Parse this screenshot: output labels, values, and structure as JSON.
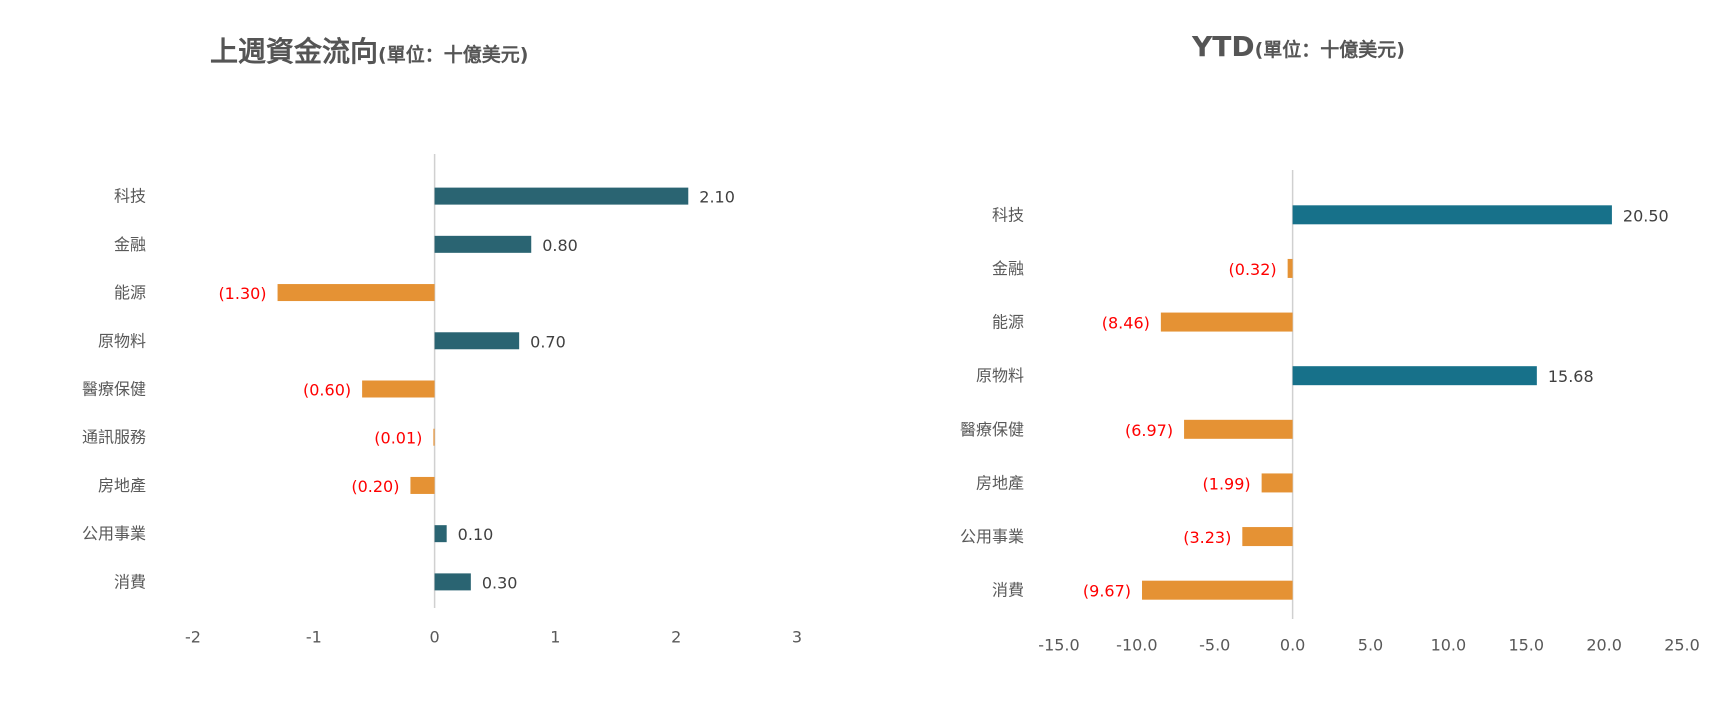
{
  "chart_data": [
    {
      "type": "bar",
      "orientation": "horizontal",
      "title": "上週資金流向",
      "title_unit": "(單位：十億美元)",
      "categories": [
        "科技",
        "金融",
        "能源",
        "原物料",
        "醫療保健",
        "通訊服務",
        "房地產",
        "公用事業",
        "消費"
      ],
      "values": [
        2.1,
        0.8,
        -1.3,
        0.7,
        -0.6,
        -0.01,
        -0.2,
        0.1,
        0.3
      ],
      "value_labels": [
        "2.10",
        "0.80",
        "(1.30)",
        "0.70",
        "(0.60)",
        "(0.01)",
        "(0.20)",
        "0.10",
        "0.30"
      ],
      "xlim": [
        -2,
        3
      ],
      "xticks": [
        -2,
        -1,
        0,
        1,
        2,
        3
      ],
      "xtick_labels": [
        "-2",
        "-1",
        "0",
        "1",
        "2",
        "3"
      ],
      "grid": false,
      "legend": "none",
      "colors": {
        "positive": "#2a6472",
        "negative": "#e59234",
        "negative_label": "#ff0000",
        "positive_label": "#404040",
        "axis_label": "#595959",
        "axis_line": "#d0d0d0"
      }
    },
    {
      "type": "bar",
      "orientation": "horizontal",
      "title": "YTD",
      "title_unit": "(單位：十億美元)",
      "categories": [
        "科技",
        "金融",
        "能源",
        "原物料",
        "醫療保健",
        "房地產",
        "公用事業",
        "消費"
      ],
      "values": [
        20.5,
        -0.32,
        -8.46,
        15.68,
        -6.97,
        -1.99,
        -3.23,
        -9.67
      ],
      "value_labels": [
        "20.50",
        "(0.32)",
        "(8.46)",
        "15.68",
        "(6.97)",
        "(1.99)",
        "(3.23)",
        "(9.67)"
      ],
      "xlim": [
        -15,
        25
      ],
      "xticks": [
        -15,
        -10,
        -5,
        0,
        5,
        10,
        15,
        20,
        25
      ],
      "xtick_labels": [
        "-15.0",
        "-10.0",
        "-5.0",
        "0.0",
        "5.0",
        "10.0",
        "15.0",
        "20.0",
        "25.0"
      ],
      "grid": false,
      "legend": "none",
      "colors": {
        "positive": "#17718a",
        "negative": "#e59234",
        "negative_label": "#ff0000",
        "positive_label": "#404040",
        "axis_label": "#595959",
        "axis_line": "#d0d0d0"
      }
    }
  ]
}
